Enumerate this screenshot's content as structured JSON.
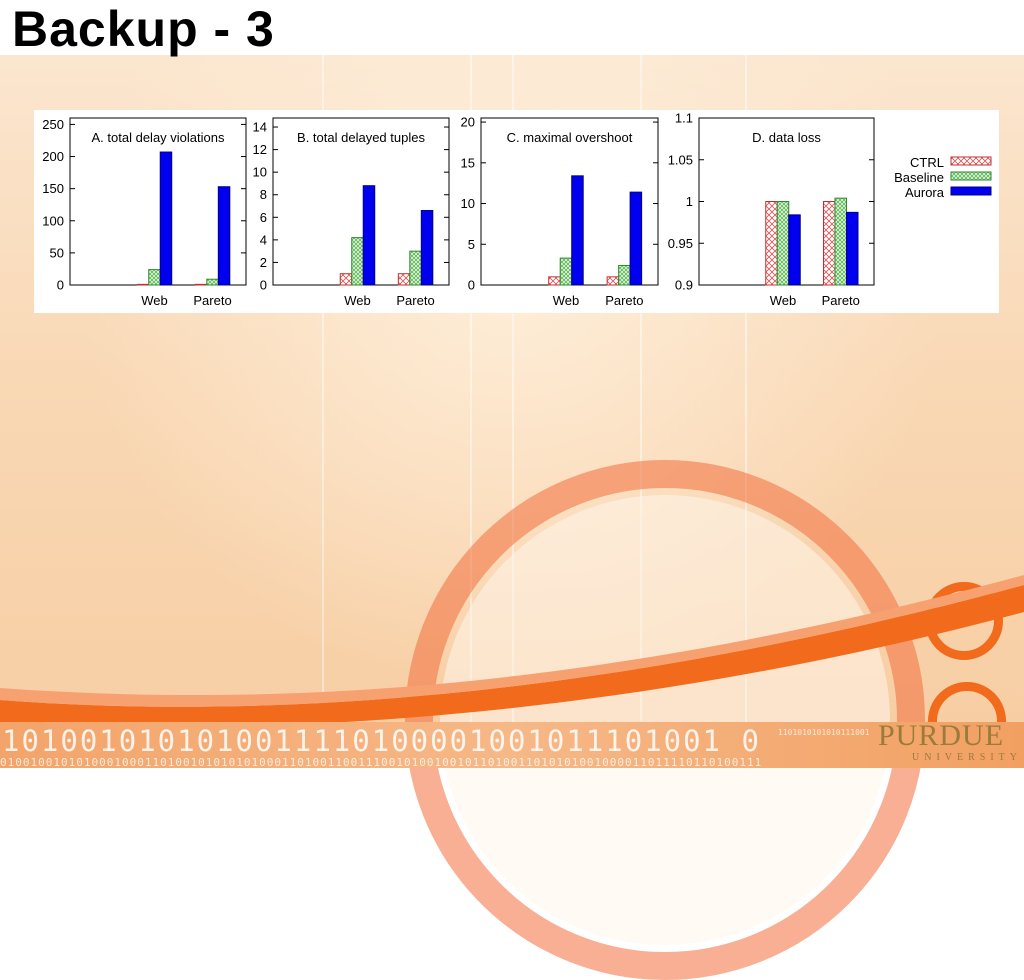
{
  "slide": {
    "title": "Backup - 3",
    "footer_binary_large": "1010010101010011110100001001011101001 0",
    "footer_binary_small": "0100100101010001000110100101010101000110100110011100101001001011010011010101001000011011110110100111",
    "footer_binary_tiny": "1101010101010111001",
    "logo_text": "PURDUE",
    "logo_subtext": "UNIVERSITY"
  },
  "colors": {
    "ctrl": "#e05050",
    "baseline": "#2e9a2e",
    "aurora": "#0000ee",
    "accent_orange": "#f26a1b"
  },
  "chart_data": [
    {
      "type": "bar",
      "title": "A. total delay violations",
      "categories": [
        "Web",
        "Pareto"
      ],
      "series": [
        {
          "name": "CTRL",
          "values": [
            1,
            1
          ]
        },
        {
          "name": "Baseline",
          "values": [
            24,
            9
          ]
        },
        {
          "name": "Aurora",
          "values": [
            207,
            153
          ]
        }
      ],
      "ylim": [
        0,
        260
      ],
      "yticks": [
        "0",
        "50",
        "100",
        "150",
        "200",
        "250"
      ],
      "ytick_values": [
        0,
        50,
        100,
        150,
        200,
        250
      ]
    },
    {
      "type": "bar",
      "title": "B. total delayed tuples",
      "categories": [
        "Web",
        "Pareto"
      ],
      "series": [
        {
          "name": "CTRL",
          "values": [
            1.0,
            1.0
          ]
        },
        {
          "name": "Baseline",
          "values": [
            4.2,
            3.0
          ]
        },
        {
          "name": "Aurora",
          "values": [
            8.8,
            6.6
          ]
        }
      ],
      "ylim": [
        0,
        14.8
      ],
      "yticks": [
        "0",
        "2",
        "4",
        "6",
        "8",
        "10",
        "12",
        "14"
      ],
      "ytick_values": [
        0,
        2,
        4,
        6,
        8,
        10,
        12,
        14
      ]
    },
    {
      "type": "bar",
      "title": "C. maximal overshoot",
      "categories": [
        "Web",
        "Pareto"
      ],
      "series": [
        {
          "name": "CTRL",
          "values": [
            1.0,
            1.0
          ]
        },
        {
          "name": "Baseline",
          "values": [
            3.3,
            2.4
          ]
        },
        {
          "name": "Aurora",
          "values": [
            13.4,
            11.4
          ]
        }
      ],
      "ylim": [
        0,
        20.5
      ],
      "yticks": [
        "0",
        "5",
        "10",
        "15",
        "20"
      ],
      "ytick_values": [
        0,
        5,
        10,
        15,
        20
      ]
    },
    {
      "type": "bar",
      "title": "D. data loss",
      "categories": [
        "Web",
        "Pareto"
      ],
      "series": [
        {
          "name": "CTRL",
          "values": [
            1.0,
            1.0
          ]
        },
        {
          "name": "Baseline",
          "values": [
            1.0,
            1.004
          ]
        },
        {
          "name": "Aurora",
          "values": [
            0.984,
            0.987
          ]
        }
      ],
      "ylim": [
        0.9,
        1.1
      ],
      "yticks": [
        "0.9",
        "0.95",
        "1",
        "1.05",
        "1.1"
      ],
      "ytick_values": [
        0.9,
        0.95,
        1.0,
        1.05,
        1.1
      ],
      "legend": {
        "position": "right",
        "entries": [
          "CTRL",
          "Baseline",
          "Aurora"
        ]
      }
    }
  ]
}
